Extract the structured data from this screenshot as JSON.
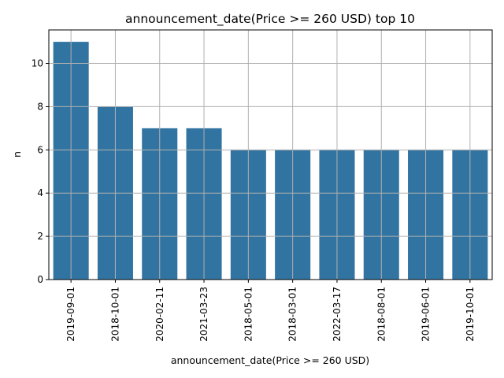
{
  "chart_data": {
    "type": "bar",
    "title": "announcement_date(Price >= 260 USD) top 10",
    "xlabel": "announcement_date(Price >= 260 USD)",
    "ylabel": "n",
    "categories": [
      "2019-09-01",
      "2018-10-01",
      "2020-02-11",
      "2021-03-23",
      "2018-05-01",
      "2018-03-01",
      "2022-03-17",
      "2018-08-01",
      "2019-06-01",
      "2019-10-01"
    ],
    "values": [
      11,
      8,
      7,
      7,
      6,
      6,
      6,
      6,
      6,
      6
    ],
    "ylim": [
      0,
      11.55
    ],
    "yticks": [
      0,
      2,
      4,
      6,
      8,
      10
    ],
    "grid": true,
    "bar_color": "#3274a1"
  }
}
